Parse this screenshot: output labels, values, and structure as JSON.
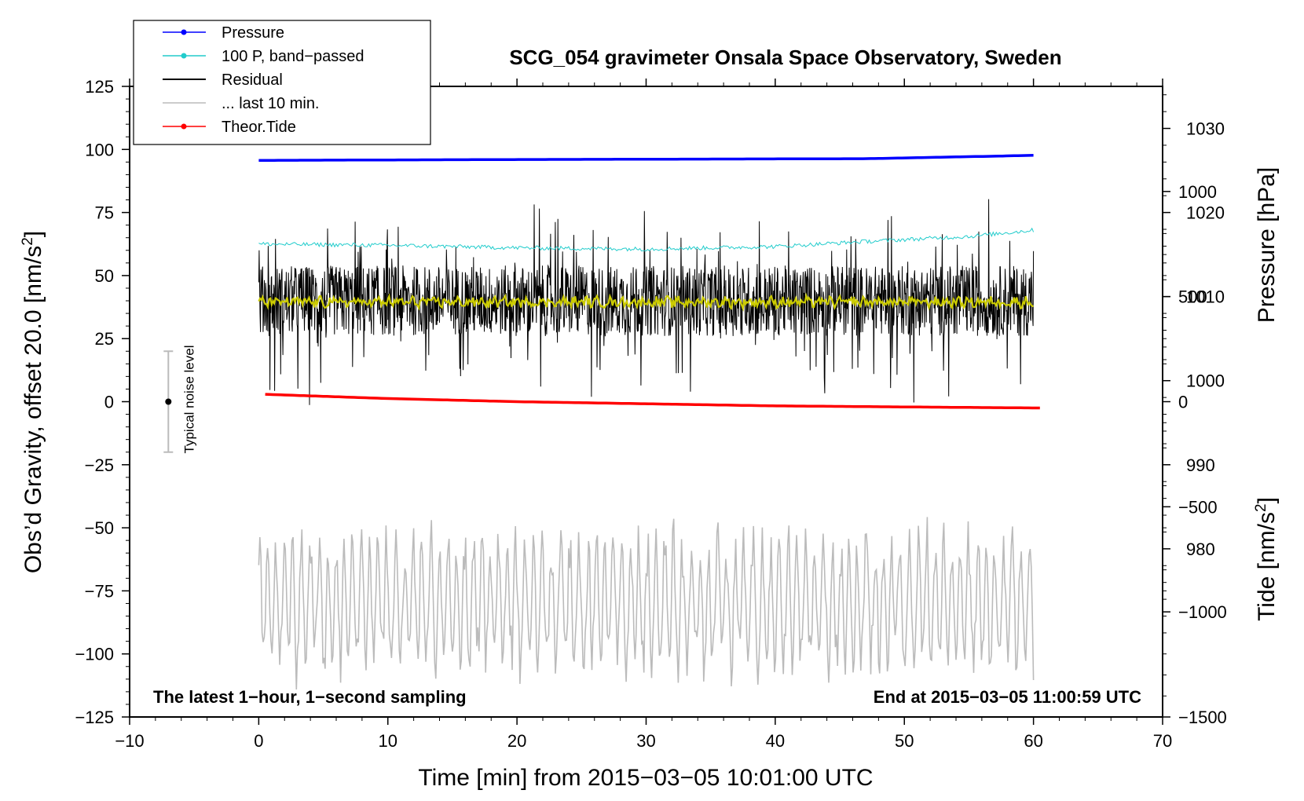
{
  "chart_data": {
    "type": "line",
    "title": "SCG_054 gravimeter Onsala Space Observatory, Sweden",
    "xlabel": "Time [min] from 2015−03−05 10:01:00 UTC",
    "ylabel_left_main": "Obs’d Gravity, offset 20.0 [nm/s",
    "ylabel_left_sup": "2",
    "ylabel_left_end": "]",
    "ylabel_right_pressure": "Pressure [hPa]",
    "ylabel_right_tide_main": "Tide [nm/s",
    "ylabel_right_tide_sup": "2",
    "ylabel_right_tide_end": "]",
    "xlim": [
      -10,
      70
    ],
    "ylim_left": [
      -125,
      125
    ],
    "ylim_pressure": [
      960,
      1035
    ],
    "ylim_tide": [
      -1500,
      1500
    ],
    "x_ticks": [
      -10,
      0,
      10,
      20,
      30,
      40,
      50,
      60,
      70
    ],
    "x_tick_labels": [
      "−10",
      "0",
      "10",
      "20",
      "30",
      "40",
      "50",
      "60",
      "70"
    ],
    "y_ticks_left": [
      125,
      100,
      75,
      50,
      25,
      0,
      -25,
      -50,
      -75,
      -100,
      -125
    ],
    "y_tick_labels_left": [
      "125",
      "100",
      "75",
      "50",
      "25",
      "0",
      "−25",
      "−50",
      "−75",
      "−100",
      "−125"
    ],
    "y_ticks_pressure": [
      1030,
      1020,
      1010,
      1000,
      990,
      980
    ],
    "y_tick_labels_pressure": [
      "1030",
      "1020",
      "1010",
      "1000",
      "990",
      "980"
    ],
    "y_ticks_tide": [
      1000,
      500,
      0,
      -500,
      -1000,
      -1500
    ],
    "y_tick_labels_tide": [
      "1000",
      "500",
      "0",
      "−500",
      "−1000",
      "−1500"
    ],
    "legend_position": "top-left",
    "legend": [
      {
        "label": "Pressure",
        "color": "#0000ff",
        "marker": true
      },
      {
        "label": "100 P, band−passed",
        "color": "#22cccc",
        "marker": true
      },
      {
        "label": "Residual",
        "color": "#000000",
        "marker": false
      },
      {
        "label": "... last 10 min.",
        "color": "#bbbbbb",
        "marker": false
      },
      {
        "label": "Theor.Tide",
        "color": "#ff0000",
        "marker": true
      }
    ],
    "series": [
      {
        "name": "Pressure",
        "axis": "pressure",
        "color": "#0000ff",
        "x": [
          0,
          20,
          47,
          57,
          60
        ],
        "values": [
          1026.2,
          1026.3,
          1026.4,
          1026.7,
          1026.8
        ]
      },
      {
        "name": "100 P, band-passed",
        "axis": "left",
        "color": "#22cccc",
        "x": [
          0,
          10,
          20,
          30,
          40,
          47,
          55,
          60
        ],
        "values": [
          62.5,
          62,
          61,
          60.5,
          61.5,
          63.5,
          65.5,
          68
        ]
      },
      {
        "name": "Residual",
        "axis": "left",
        "color": "#000000",
        "x_range": [
          0,
          60
        ],
        "center": 40,
        "typical_range": [
          14,
          68
        ],
        "min": -4,
        "max": 83
      },
      {
        "name": "Residual smoothed",
        "axis": "left",
        "color": "#cccc00",
        "x_range": [
          0,
          60
        ],
        "values_approx": 39.5
      },
      {
        "name": "... last 10 min.",
        "axis": "left",
        "color": "#bbbbbb",
        "x_range": [
          0,
          60
        ],
        "center": -80,
        "min": -115,
        "max": -43
      },
      {
        "name": "Theor.Tide",
        "axis": "tide",
        "color": "#ff0000",
        "x": [
          0.5,
          10,
          20,
          30,
          40,
          50,
          60.5
        ],
        "values": [
          35,
          15,
          0,
          -10,
          -20,
          -25,
          -30
        ]
      }
    ],
    "noise_bar": {
      "x": -7,
      "center": 0,
      "low": -20,
      "high": 20,
      "label": "Typical noise level"
    },
    "annotation_left": "The latest 1−hour, 1−second sampling",
    "annotation_right": "End at 2015−03−05 11:00:59 UTC"
  }
}
